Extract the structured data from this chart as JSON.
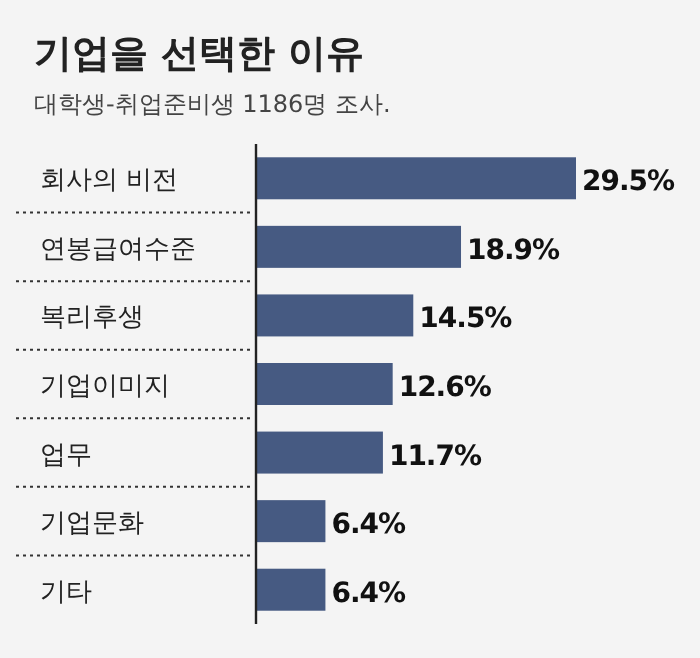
{
  "chart_data": {
    "type": "bar",
    "orientation": "horizontal",
    "title": "기업을 선택한 이유",
    "subtitle": "대학생-취업준비생 1186명 조사.",
    "categories": [
      "회사의 비전",
      "연봉급여수준",
      "복리후생",
      "기업이미지",
      "업무",
      "기업문화",
      "기타"
    ],
    "values": [
      29.5,
      18.9,
      14.5,
      12.6,
      11.7,
      6.4,
      6.4
    ],
    "value_labels": [
      "29.5%",
      "18.9%",
      "14.5%",
      "12.6%",
      "11.7%",
      "6.4%",
      "6.4%"
    ],
    "color": "#465a82",
    "xlim": [
      0,
      29.5
    ]
  }
}
